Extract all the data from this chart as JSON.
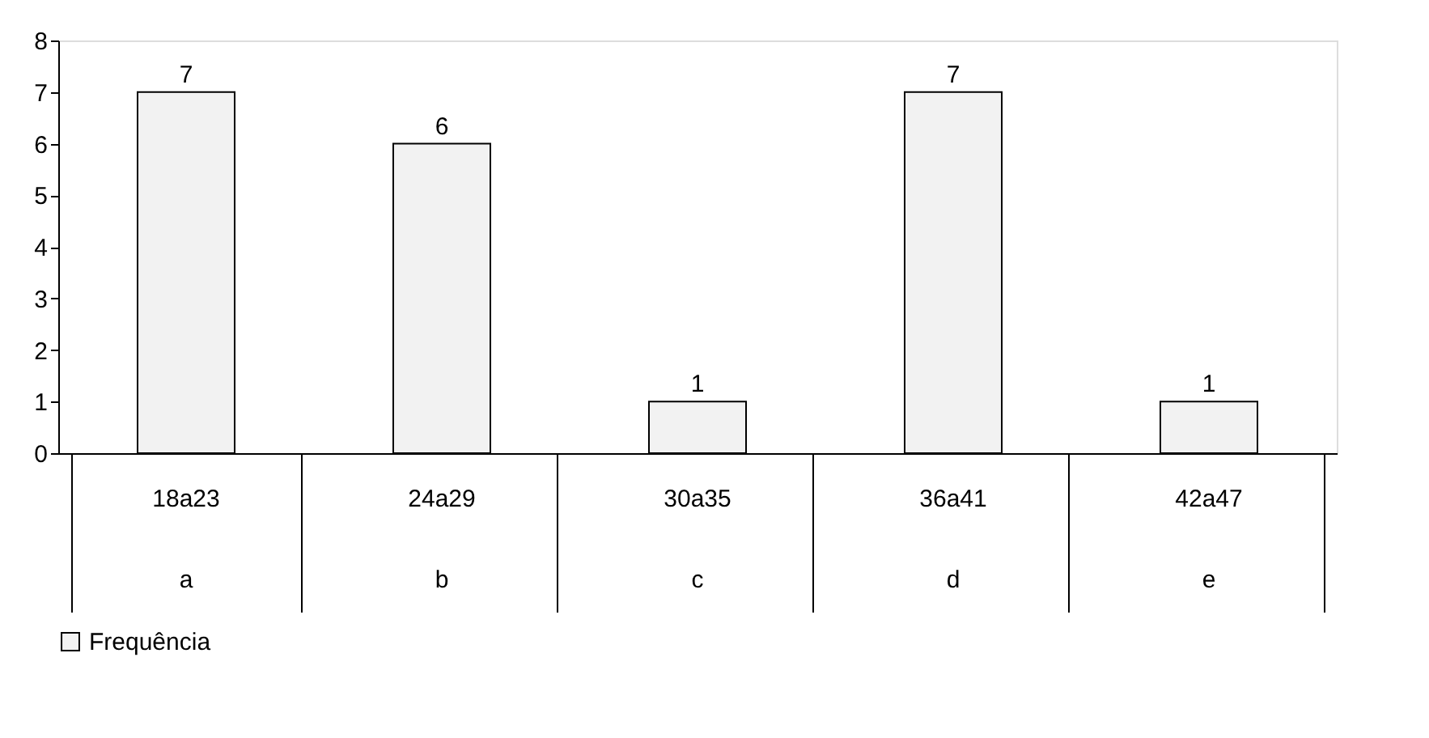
{
  "chart_data": {
    "type": "bar",
    "categories": [
      "18a23\na",
      "24a29\nb",
      "30a35\nc",
      "36a41\nd",
      "42a47\ne"
    ],
    "series": [
      {
        "name": "Frequência",
        "color": "#f2f2f2",
        "values": [
          7,
          6,
          1,
          7,
          1
        ]
      }
    ],
    "ylim": [
      0,
      8
    ],
    "yticks": [
      0,
      1,
      2,
      3,
      4,
      5,
      6,
      7,
      8
    ],
    "data_labels": true,
    "grid": false,
    "legend": "bottom"
  }
}
